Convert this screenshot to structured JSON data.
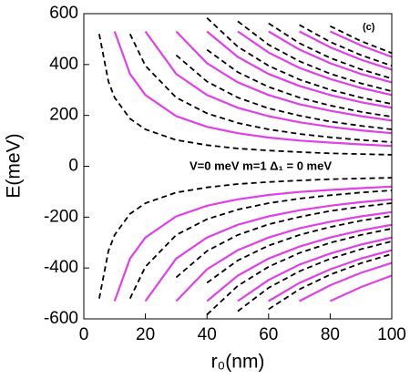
{
  "chart_data": {
    "type": "line",
    "x_label": "r₀(nm)",
    "y_label": "E(meV)",
    "annotations": [
      "V=0 meV   m=1   Δ₁ = 0 meV",
      "(c)"
    ],
    "x": [
      5,
      8,
      10,
      15,
      20,
      30,
      40,
      50,
      60,
      70,
      80,
      90,
      100
    ],
    "xlim": [
      0,
      100
    ],
    "xticks": [
      0,
      20,
      40,
      60,
      80,
      100
    ],
    "ylim": [
      -600,
      600
    ],
    "yticks": [
      -600,
      -400,
      -200,
      0,
      200,
      400,
      600
    ],
    "series": [
      {
        "color": "#e040e8",
        "dashed": false,
        "values": [
          null,
          null,
          530,
          363,
          280,
          197,
          155,
          130,
          113,
          101,
          93,
          86,
          80
        ]
      },
      {
        "color": "#e040e8",
        "dashed": false,
        "values": [
          null,
          null,
          null,
          null,
          530,
          363,
          280,
          230,
          197,
          173,
          155,
          141,
          130
        ]
      },
      {
        "color": "#e040e8",
        "dashed": false,
        "values": [
          null,
          null,
          null,
          null,
          null,
          530,
          405,
          330,
          280,
          244,
          218,
          197,
          180
        ]
      },
      {
        "color": "#e040e8",
        "dashed": false,
        "values": [
          null,
          null,
          null,
          null,
          null,
          null,
          530,
          430,
          363,
          316,
          280,
          252,
          230
        ]
      },
      {
        "color": "#e040e8",
        "dashed": false,
        "values": [
          null,
          null,
          null,
          null,
          null,
          null,
          null,
          530,
          447,
          387,
          343,
          308,
          280
        ]
      },
      {
        "color": "#e040e8",
        "dashed": false,
        "values": [
          null,
          null,
          null,
          null,
          null,
          null,
          null,
          null,
          530,
          459,
          405,
          363,
          330
        ]
      },
      {
        "color": "#e040e8",
        "dashed": false,
        "values": [
          null,
          null,
          null,
          null,
          null,
          null,
          null,
          null,
          null,
          530,
          468,
          419,
          380
        ]
      },
      {
        "color": "#e040e8",
        "dashed": false,
        "values": [
          null,
          null,
          null,
          null,
          null,
          null,
          null,
          null,
          null,
          null,
          530,
          475,
          430
        ]
      },
      {
        "color": "#e040e8",
        "dashed": false,
        "values": [
          null,
          null,
          -530,
          -363,
          -280,
          -197,
          -155,
          -130,
          -113,
          -101,
          -93,
          -86,
          -80
        ]
      },
      {
        "color": "#e040e8",
        "dashed": false,
        "values": [
          null,
          null,
          null,
          null,
          -530,
          -363,
          -280,
          -230,
          -197,
          -173,
          -155,
          -141,
          -130
        ]
      },
      {
        "color": "#e040e8",
        "dashed": false,
        "values": [
          null,
          null,
          null,
          null,
          null,
          -530,
          -405,
          -330,
          -280,
          -244,
          -218,
          -197,
          -180
        ]
      },
      {
        "color": "#e040e8",
        "dashed": false,
        "values": [
          null,
          null,
          null,
          null,
          null,
          null,
          -530,
          -430,
          -363,
          -316,
          -280,
          -252,
          -230
        ]
      },
      {
        "color": "#e040e8",
        "dashed": false,
        "values": [
          null,
          null,
          null,
          null,
          null,
          null,
          null,
          -530,
          -447,
          -387,
          -343,
          -308,
          -280
        ]
      },
      {
        "color": "#e040e8",
        "dashed": false,
        "values": [
          null,
          null,
          null,
          null,
          null,
          null,
          null,
          null,
          -530,
          -459,
          -405,
          -363,
          -330
        ]
      },
      {
        "color": "#e040e8",
        "dashed": false,
        "values": [
          null,
          null,
          null,
          null,
          null,
          null,
          null,
          null,
          null,
          -530,
          -468,
          -419,
          -380
        ]
      },
      {
        "color": "#e040e8",
        "dashed": false,
        "values": [
          null,
          null,
          null,
          null,
          null,
          null,
          null,
          null,
          null,
          null,
          -530,
          -475,
          -430
        ]
      },
      {
        "color": "#000000",
        "dashed": true,
        "values": [
          520,
          333,
          270,
          187,
          145,
          103,
          83,
          70,
          62,
          56,
          51,
          48,
          45
        ]
      },
      {
        "color": "#000000",
        "dashed": true,
        "values": [
          null,
          null,
          null,
          520,
          395,
          270,
          208,
          170,
          145,
          127,
          114,
          103,
          95
        ]
      },
      {
        "color": "#000000",
        "dashed": true,
        "values": [
          null,
          null,
          null,
          null,
          null,
          437,
          333,
          270,
          228,
          199,
          176,
          159,
          145
        ]
      },
      {
        "color": "#000000",
        "dashed": true,
        "values": [
          null,
          null,
          null,
          null,
          null,
          null,
          458,
          370,
          312,
          270,
          239,
          214,
          195
        ]
      },
      {
        "color": "#000000",
        "dashed": true,
        "values": [
          null,
          null,
          null,
          null,
          null,
          null,
          583,
          470,
          395,
          341,
          301,
          270,
          245
        ]
      },
      {
        "color": "#000000",
        "dashed": true,
        "values": [
          null,
          null,
          null,
          null,
          null,
          null,
          null,
          570,
          478,
          413,
          364,
          326,
          295
        ]
      },
      {
        "color": "#000000",
        "dashed": true,
        "values": [
          null,
          null,
          null,
          null,
          null,
          null,
          null,
          null,
          562,
          484,
          426,
          381,
          345
        ]
      },
      {
        "color": "#000000",
        "dashed": true,
        "values": [
          null,
          null,
          null,
          null,
          null,
          null,
          null,
          null,
          null,
          556,
          489,
          437,
          395
        ]
      },
      {
        "color": "#000000",
        "dashed": true,
        "values": [
          null,
          null,
          null,
          null,
          null,
          null,
          null,
          null,
          null,
          null,
          551,
          492,
          445
        ]
      },
      {
        "color": "#000000",
        "dashed": true,
        "values": [
          -520,
          -333,
          -270,
          -187,
          -145,
          -103,
          -83,
          -70,
          -62,
          -56,
          -51,
          -48,
          -45
        ]
      },
      {
        "color": "#000000",
        "dashed": true,
        "values": [
          null,
          null,
          null,
          -520,
          -395,
          -270,
          -208,
          -170,
          -145,
          -127,
          -114,
          -103,
          -95
        ]
      },
      {
        "color": "#000000",
        "dashed": true,
        "values": [
          null,
          null,
          null,
          null,
          null,
          -437,
          -333,
          -270,
          -228,
          -199,
          -176,
          -159,
          -145
        ]
      },
      {
        "color": "#000000",
        "dashed": true,
        "values": [
          null,
          null,
          null,
          null,
          null,
          null,
          -458,
          -370,
          -312,
          -270,
          -239,
          -214,
          -195
        ]
      },
      {
        "color": "#000000",
        "dashed": true,
        "values": [
          null,
          null,
          null,
          null,
          null,
          null,
          -583,
          -470,
          -395,
          -341,
          -301,
          -270,
          -245
        ]
      },
      {
        "color": "#000000",
        "dashed": true,
        "values": [
          null,
          null,
          null,
          null,
          null,
          null,
          null,
          -570,
          -478,
          -413,
          -364,
          -326,
          -295
        ]
      },
      {
        "color": "#000000",
        "dashed": true,
        "values": [
          null,
          null,
          null,
          null,
          null,
          null,
          null,
          null,
          -562,
          -484,
          -426,
          -381,
          -345
        ]
      }
    ]
  }
}
